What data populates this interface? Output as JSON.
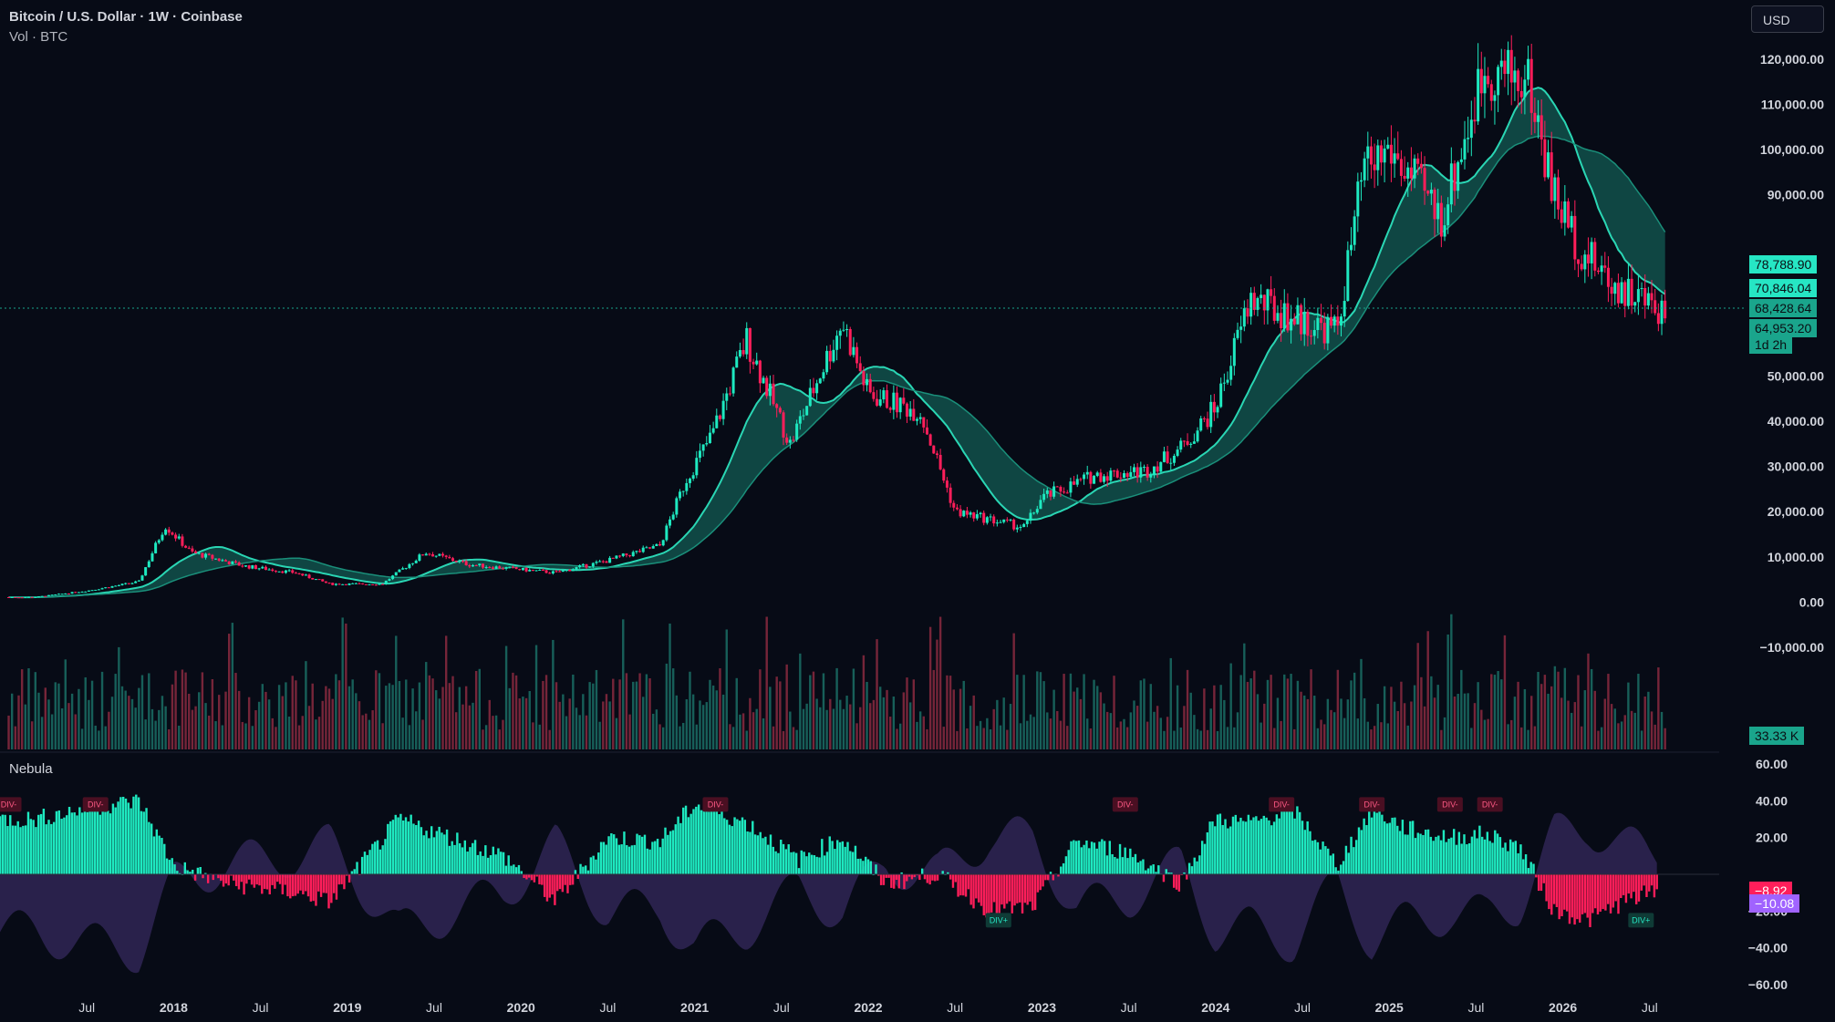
{
  "header": {
    "symbol_line": "Bitcoin / U.S. Dollar · 1W · Coinbase",
    "volume_line": "Vol · BTC"
  },
  "currency_label": "USD",
  "oscillator_name": "Nebula",
  "price_tags": [
    {
      "text": "78,788.90",
      "value": 78788.9,
      "bg": "#26e6c4"
    },
    {
      "text": "70,846.04",
      "value": 70846.04,
      "bg": "#26e6c4"
    },
    {
      "text": "68,428.64",
      "value": 68428.64,
      "bg": "#1aa58c"
    },
    {
      "text": "64,953.20",
      "value": 64953.2,
      "bg": "#1aa58c"
    },
    {
      "text": "1d 2h",
      "bg": "#1aa58c"
    }
  ],
  "volume_tag": {
    "text": "33.33 K",
    "bg": "#1aa58c"
  },
  "osc_tags": [
    {
      "text": "−8.92",
      "value": -8.92,
      "bg": "#ff1e5a"
    },
    {
      "text": "−10.08",
      "value": -10.08,
      "bg": "#a063ff"
    }
  ],
  "colors": {
    "background": "#070b16",
    "bull": "#1ee9c0",
    "bear": "#ff1e5a",
    "band_fill": "#1a8f7a",
    "purple": "#6a4ab0"
  },
  "chart_data": {
    "type": "line",
    "title": "Bitcoin / U.S. Dollar · 1W · Coinbase",
    "x_ticks": [
      "Jul",
      "2018",
      "Jul",
      "2019",
      "Jul",
      "2020",
      "Jul",
      "2021",
      "Jul",
      "2022",
      "Jul",
      "2023",
      "Jul",
      "2024",
      "Jul",
      "2025",
      "Jul",
      "2026",
      "Jul"
    ],
    "price_axis_ticks": [
      "120,000.00",
      "110,000.00",
      "100,000.00",
      "90,000.00",
      "50,000.00",
      "40,000.00",
      "30,000.00",
      "20,000.00",
      "10,000.00",
      "0.00",
      "−10,000.00"
    ],
    "price_axis_values": [
      120000,
      110000,
      100000,
      90000,
      50000,
      40000,
      30000,
      20000,
      10000,
      0,
      -10000
    ],
    "osc_axis_ticks": [
      "60.00",
      "40.00",
      "20.00",
      "−20.00",
      "−40.00",
      "−60.00"
    ],
    "osc_axis_values": [
      60,
      40,
      20,
      -20,
      -40,
      -60
    ],
    "price_series": {
      "name": "",
      "x": [
        2017.2,
        2017.5,
        2017.8,
        2017.95,
        2018.1,
        2018.4,
        2018.7,
        2018.9,
        2019.2,
        2019.45,
        2019.7,
        2020.0,
        2020.2,
        2020.5,
        2020.8,
        2020.95,
        2021.1,
        2021.3,
        2021.55,
        2021.85,
        2022.0,
        2022.3,
        2022.5,
        2022.9,
        2023.0,
        2023.3,
        2023.6,
        2023.8,
        2024.0,
        2024.2,
        2024.5,
        2024.7,
        2024.85,
        2025.0,
        2025.3,
        2025.55,
        2025.8,
        2025.95,
        2026.1,
        2026.3,
        2026.55
      ],
      "close": [
        1100,
        2500,
        4500,
        17000,
        11000,
        8000,
        6500,
        4000,
        4000,
        11000,
        8300,
        7200,
        6500,
        9200,
        12500,
        27000,
        37000,
        58000,
        35000,
        62000,
        46000,
        42000,
        20000,
        16500,
        23000,
        28000,
        29000,
        34000,
        43000,
        67000,
        62000,
        60000,
        95000,
        100000,
        85000,
        118000,
        115000,
        90000,
        78000,
        70000,
        65000
      ]
    },
    "osc_series": {
      "name": "",
      "x": [
        2017.2,
        2017.5,
        2017.8,
        2018.0,
        2018.3,
        2018.7,
        2018.9,
        2019.3,
        2019.6,
        2019.9,
        2020.2,
        2020.5,
        2020.8,
        2021.0,
        2021.3,
        2021.6,
        2021.85,
        2022.1,
        2022.4,
        2022.7,
        2022.95,
        2023.2,
        2023.5,
        2023.8,
        2024.0,
        2024.2,
        2024.45,
        2024.7,
        2024.9,
        2025.1,
        2025.35,
        2025.55,
        2025.75,
        2025.95,
        2026.15,
        2026.35,
        2026.5
      ],
      "values": [
        30,
        36,
        40,
        5,
        -5,
        -10,
        -15,
        30,
        20,
        10,
        -15,
        20,
        18,
        38,
        28,
        8,
        20,
        -5,
        0,
        -20,
        -18,
        18,
        12,
        -5,
        30,
        28,
        35,
        5,
        35,
        25,
        20,
        22,
        15,
        -20,
        -25,
        -15,
        -10
      ]
    },
    "div_labels": [
      "DIV-",
      "DIV-",
      "DIV-",
      "DIV-",
      "DIV-",
      "DIV-",
      "DIV-",
      "DIV-",
      "DIV+",
      "DIV+"
    ],
    "ylim_price": [
      -12000,
      125000
    ],
    "ylim_osc": [
      -65,
      65
    ]
  }
}
